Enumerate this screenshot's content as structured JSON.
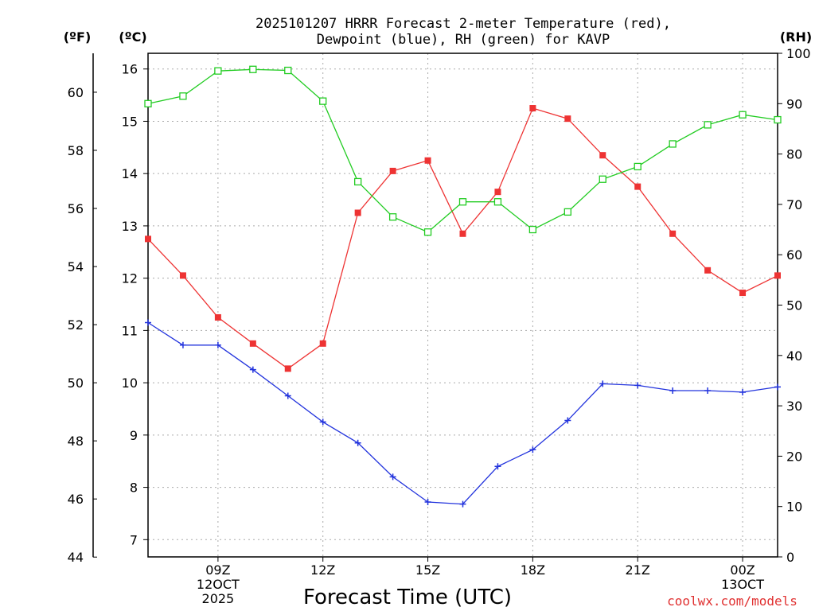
{
  "chart_data": {
    "type": "line",
    "title_line1": "2025101207 HRRR Forecast 2-meter Temperature (red),",
    "title_line2": "Dewpoint (blue), RH (green) for KAVP",
    "unit_f": "(ºF)",
    "unit_c": "(ºC)",
    "unit_rh": "(RH)",
    "xlabel": "Forecast Time (UTC)",
    "credit": "coolwx.com/models",
    "x_hours": [
      7,
      8,
      9,
      10,
      11,
      12,
      13,
      14,
      15,
      16,
      17,
      18,
      19,
      20,
      21,
      22,
      23,
      24,
      25
    ],
    "xlim": [
      7,
      25
    ],
    "x_ticks": [
      {
        "hour": 9,
        "lines": [
          "09Z",
          "12OCT",
          "2025"
        ]
      },
      {
        "hour": 12,
        "lines": [
          "12Z"
        ]
      },
      {
        "hour": 15,
        "lines": [
          "15Z"
        ]
      },
      {
        "hour": 18,
        "lines": [
          "18Z"
        ]
      },
      {
        "hour": 21,
        "lines": [
          "21Z"
        ]
      },
      {
        "hour": 24,
        "lines": [
          "00Z",
          "13OCT"
        ]
      }
    ],
    "ylim_c": [
      6.67,
      16.3
    ],
    "c_ticks": [
      "7",
      "8",
      "9",
      "10",
      "11",
      "12",
      "13",
      "14",
      "15",
      "16"
    ],
    "f_ticks": [
      "44",
      "46",
      "48",
      "50",
      "52",
      "54",
      "56",
      "58",
      "60"
    ],
    "ylim_rh": [
      0,
      100
    ],
    "rh_ticks": [
      "0",
      "10",
      "20",
      "30",
      "40",
      "50",
      "60",
      "70",
      "80",
      "90",
      "100"
    ],
    "series": [
      {
        "name": "Temperature",
        "units": "C",
        "color": "#ee3333",
        "marker": "filled-square",
        "values": [
          12.75,
          12.05,
          11.25,
          10.75,
          10.27,
          10.75,
          13.25,
          14.05,
          14.25,
          12.85,
          13.65,
          15.25,
          15.05,
          14.35,
          13.75,
          12.85,
          12.15,
          11.72,
          12.05
        ]
      },
      {
        "name": "Dewpoint",
        "units": "C",
        "color": "#2233dd",
        "marker": "plus",
        "values": [
          11.15,
          10.72,
          10.72,
          10.25,
          9.75,
          9.25,
          8.85,
          8.2,
          7.72,
          7.68,
          8.4,
          8.72,
          9.28,
          9.98,
          9.95,
          9.85,
          9.85,
          9.82,
          9.92
        ]
      },
      {
        "name": "Relative Humidity",
        "units": "%",
        "color": "#22cc22",
        "marker": "open-square",
        "values": [
          90,
          91.5,
          96.5,
          96.8,
          96.6,
          90.5,
          74.5,
          67.5,
          64.5,
          70.5,
          70.5,
          65,
          68.5,
          75,
          77.5,
          82,
          85.8,
          87.8,
          86.8
        ]
      }
    ]
  }
}
